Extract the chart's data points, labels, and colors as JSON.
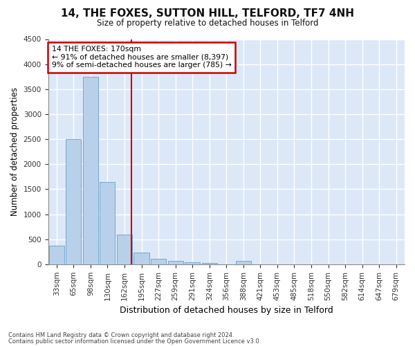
{
  "title": "14, THE FOXES, SUTTON HILL, TELFORD, TF7 4NH",
  "subtitle": "Size of property relative to detached houses in Telford",
  "xlabel": "Distribution of detached houses by size in Telford",
  "ylabel": "Number of detached properties",
  "categories": [
    "33sqm",
    "65sqm",
    "98sqm",
    "130sqm",
    "162sqm",
    "195sqm",
    "227sqm",
    "259sqm",
    "291sqm",
    "324sqm",
    "356sqm",
    "388sqm",
    "421sqm",
    "453sqm",
    "485sqm",
    "518sqm",
    "550sqm",
    "582sqm",
    "614sqm",
    "647sqm",
    "679sqm"
  ],
  "values": [
    370,
    2500,
    3750,
    1650,
    590,
    230,
    105,
    65,
    40,
    30,
    0,
    60,
    0,
    0,
    0,
    0,
    0,
    0,
    0,
    0,
    0
  ],
  "bar_color": "#b8d0ea",
  "bar_edge_color": "#6a9fc8",
  "annotation_line1": "14 THE FOXES: 170sqm",
  "annotation_line2": "← 91% of detached houses are smaller (8,397)",
  "annotation_line3": "9% of semi-detached houses are larger (785) →",
  "box_edge_color": "#cc0000",
  "marker_line_color": "#cc0000",
  "ylim": [
    0,
    4500
  ],
  "yticks": [
    0,
    500,
    1000,
    1500,
    2000,
    2500,
    3000,
    3500,
    4000,
    4500
  ],
  "background_color": "#dce8f8",
  "grid_color": "#ffffff",
  "fig_background": "#ffffff",
  "footer1": "Contains HM Land Registry data © Crown copyright and database right 2024.",
  "footer2": "Contains public sector information licensed under the Open Government Licence v3.0."
}
